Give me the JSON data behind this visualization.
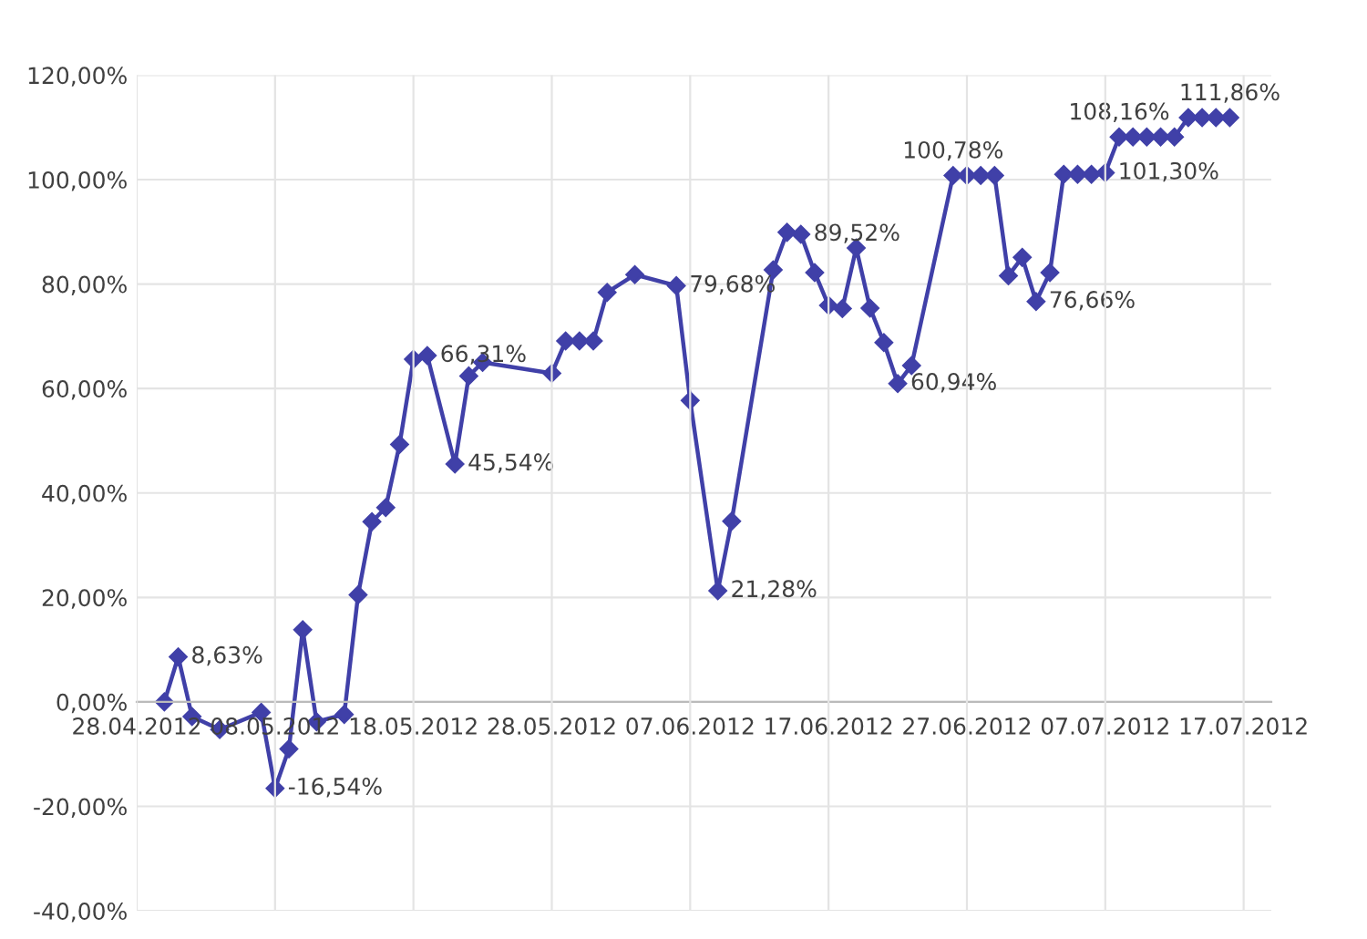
{
  "chart_data": {
    "type": "line",
    "x": [
      "2012-04-30",
      "2012-05-01",
      "2012-05-02",
      "2012-05-04",
      "2012-05-07",
      "2012-05-08",
      "2012-05-09",
      "2012-05-10",
      "2012-05-11",
      "2012-05-13",
      "2012-05-14",
      "2012-05-15",
      "2012-05-16",
      "2012-05-17",
      "2012-05-18",
      "2012-05-19",
      "2012-05-21",
      "2012-05-22",
      "2012-05-23",
      "2012-05-28",
      "2012-05-29",
      "2012-05-30",
      "2012-05-31",
      "2012-06-01",
      "2012-06-03",
      "2012-06-06",
      "2012-06-07",
      "2012-06-09",
      "2012-06-10",
      "2012-06-13",
      "2012-06-14",
      "2012-06-15",
      "2012-06-16",
      "2012-06-17",
      "2012-06-18",
      "2012-06-19",
      "2012-06-20",
      "2012-06-21",
      "2012-06-22",
      "2012-06-23",
      "2012-06-26",
      "2012-06-27",
      "2012-06-28",
      "2012-06-29",
      "2012-06-30",
      "2012-07-01",
      "2012-07-02",
      "2012-07-03",
      "2012-07-04",
      "2012-07-05",
      "2012-07-06",
      "2012-07-07",
      "2012-07-08",
      "2012-07-09",
      "2012-07-10",
      "2012-07-11",
      "2012-07-12",
      "2012-07-13",
      "2012-07-14",
      "2012-07-15",
      "2012-07-16"
    ],
    "series": [
      {
        "color": "#4040a8",
        "values": [
          0,
          8.63,
          -2.8,
          -5.3,
          -2.0,
          -16.54,
          -9,
          13.8,
          -3.8,
          -2.4,
          20.5,
          34.5,
          37.2,
          49.3,
          65.6,
          66.31,
          45.54,
          62.4,
          65.0,
          62.9,
          69.1,
          69.1,
          69.1,
          78.4,
          81.8,
          79.68,
          57.7,
          21.28,
          34.6,
          82.7,
          89.9,
          89.52,
          82.2,
          75.9,
          75.3,
          86.9,
          75.4,
          68.8,
          60.94,
          64.4,
          100.78,
          100.78,
          100.78,
          100.78,
          81.6,
          85.1,
          76.66,
          82.2,
          101.0,
          101.0,
          101.0,
          101.3,
          108.16,
          108.16,
          108.16,
          108.16,
          108.16,
          111.86,
          111.86,
          111.86,
          111.86
        ]
      }
    ],
    "annotations": [
      {
        "text": "8,63%",
        "x": "2012-05-01",
        "y": 8.63
      },
      {
        "text": "-16,54%",
        "x": "2012-05-08",
        "y": -16.54
      },
      {
        "text": "66,31%",
        "x": "2012-05-19",
        "y": 66.31
      },
      {
        "text": "45,54%",
        "x": "2012-05-21",
        "y": 45.54
      },
      {
        "text": "79,68%",
        "x": "2012-06-06",
        "y": 79.68
      },
      {
        "text": "21,28%",
        "x": "2012-06-09",
        "y": 21.28
      },
      {
        "text": "89,52%",
        "x": "2012-06-15",
        "y": 89.52
      },
      {
        "text": "60,94%",
        "x": "2012-06-22",
        "y": 60.94
      },
      {
        "text": "100,78%",
        "x": "2012-06-26",
        "y": 100.78
      },
      {
        "text": "76,66%",
        "x": "2012-07-02",
        "y": 76.66
      },
      {
        "text": "101,30%",
        "x": "2012-07-07",
        "y": 101.3
      },
      {
        "text": "108,16%",
        "x": "2012-07-08",
        "y": 108.16
      },
      {
        "text": "111,86%",
        "x": "2012-07-16",
        "y": 111.86
      }
    ],
    "xlim": [
      "2012-04-28",
      "2012-07-19"
    ],
    "xticks": [
      {
        "value": "2012-04-28",
        "label": "28.04.2012"
      },
      {
        "value": "2012-05-08",
        "label": "08.05.2012"
      },
      {
        "value": "2012-05-18",
        "label": "18.05.2012"
      },
      {
        "value": "2012-05-28",
        "label": "28.05.2012"
      },
      {
        "value": "2012-06-07",
        "label": "07.06.2012"
      },
      {
        "value": "2012-06-17",
        "label": "17.06.2012"
      },
      {
        "value": "2012-06-27",
        "label": "27.06.2012"
      },
      {
        "value": "2012-07-07",
        "label": "07.07.2012"
      },
      {
        "value": "2012-07-17",
        "label": "17.07.2012"
      }
    ],
    "ylim": [
      -40,
      120
    ],
    "yticks": [
      {
        "value": -40,
        "label": "-40,00%"
      },
      {
        "value": -20,
        "label": "-20,00%"
      },
      {
        "value": 0,
        "label": "0,00%"
      },
      {
        "value": 20,
        "label": "20,00%"
      },
      {
        "value": 40,
        "label": "40,00%"
      },
      {
        "value": 60,
        "label": "60,00%"
      },
      {
        "value": 80,
        "label": "80,00%"
      },
      {
        "value": 100,
        "label": "100,00%"
      },
      {
        "value": 120,
        "label": "120,00%"
      }
    ],
    "grid": true,
    "marker": "diamond",
    "line_style": "solid",
    "legend": false
  }
}
